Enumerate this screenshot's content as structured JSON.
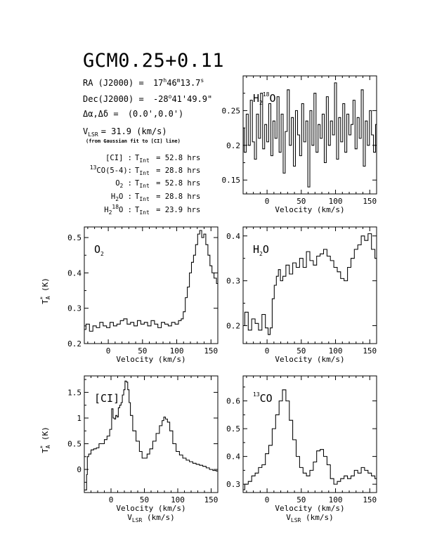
{
  "source": {
    "name": "GCM0.25+0.11",
    "ra_label": "RA (J2000) =",
    "ra_h": "17",
    "ra_m": "46",
    "ra_s": "13.7",
    "dec_label": "Dec(J2000) =",
    "dec_deg": "-28",
    "dec_min": "41'49.9\"",
    "offset_label": "Δα,Δδ =",
    "offset_value": "(0.0',0.0')",
    "vlsr_label": "V",
    "vlsr_sub": "LSR",
    "vlsr_value": "= 31.9 (km/s)",
    "vlsr_note": "(from Gaussian fit to [CI] line)"
  },
  "integration_times": [
    {
      "sup": "",
      "line": "[CI] :",
      "tint": "T",
      "tint_sub": "Int",
      "value": "= 52.8 hrs"
    },
    {
      "sup": "13",
      "line": "CO(5-4):",
      "tint": "T",
      "tint_sub": "Int",
      "value": "= 28.8 hrs"
    },
    {
      "sup": "",
      "line": "O",
      "line_sub": "2",
      "line_tail": " :",
      "tint": "T",
      "tint_sub": "Int",
      "value": "= 52.8 hrs"
    },
    {
      "sup": "",
      "line": "H",
      "line_sub": "2",
      "line_tail": "O :",
      "tint": "T",
      "tint_sub": "Int",
      "value": "= 28.8 hrs"
    },
    {
      "sup": "",
      "line": "H",
      "line_sub": "2",
      "line_sup2": "18",
      "line_tail": "O :",
      "tint": "T",
      "tint_sub": "Int",
      "value": "= 23.9 hrs"
    }
  ],
  "chart_data": [
    {
      "id": "h2-18o",
      "type": "line",
      "label": {
        "main": "H",
        "sub": "2",
        "sup": "18",
        "tail": "O"
      },
      "xlabel": "Velocity (km/s)",
      "ylabel": "",
      "xlim": [
        -35,
        160
      ],
      "ylim": [
        0.13,
        0.3
      ],
      "xticks": [
        0,
        50,
        100,
        150
      ],
      "yticks": [
        0.15,
        0.2,
        0.25
      ],
      "ytick_labels": [
        "0.15",
        "0.2",
        "0.25"
      ],
      "x": [
        -35,
        -32,
        -29,
        -26,
        -23,
        -20,
        -17,
        -14,
        -11,
        -8,
        -5,
        -2,
        1,
        4,
        7,
        10,
        13,
        16,
        19,
        22,
        25,
        28,
        31,
        34,
        37,
        40,
        43,
        46,
        49,
        52,
        55,
        58,
        61,
        64,
        67,
        70,
        73,
        76,
        79,
        82,
        85,
        88,
        91,
        94,
        97,
        100,
        103,
        106,
        109,
        112,
        115,
        118,
        121,
        124,
        127,
        130,
        133,
        136,
        139,
        142,
        145,
        148,
        151,
        154,
        157,
        160
      ],
      "values": [
        0.225,
        0.19,
        0.245,
        0.2,
        0.265,
        0.205,
        0.18,
        0.245,
        0.21,
        0.275,
        0.195,
        0.23,
        0.205,
        0.26,
        0.185,
        0.235,
        0.21,
        0.27,
        0.19,
        0.245,
        0.16,
        0.22,
        0.28,
        0.2,
        0.24,
        0.17,
        0.25,
        0.215,
        0.185,
        0.26,
        0.205,
        0.235,
        0.14,
        0.25,
        0.2,
        0.275,
        0.19,
        0.23,
        0.21,
        0.245,
        0.175,
        0.27,
        0.2,
        0.235,
        0.215,
        0.29,
        0.18,
        0.24,
        0.205,
        0.26,
        0.19,
        0.245,
        0.215,
        0.23,
        0.265,
        0.195,
        0.24,
        0.21,
        0.28,
        0.17,
        0.235,
        0.2,
        0.25,
        0.215,
        0.19,
        0.23
      ]
    },
    {
      "id": "o2",
      "type": "line",
      "label": {
        "main": "O",
        "sub": "2",
        "sup": "",
        "tail": ""
      },
      "xlabel": "Velocity (km/s)",
      "ylabel": "T*A (K)",
      "xlim": [
        -35,
        160
      ],
      "ylim": [
        0.2,
        0.53
      ],
      "xticks": [
        0,
        50,
        100,
        150
      ],
      "yticks": [
        0.2,
        0.3,
        0.4,
        0.5
      ],
      "ytick_labels": [
        "0.2",
        "0.3",
        "0.4",
        "0.5"
      ],
      "x": [
        -35,
        -30,
        -25,
        -20,
        -15,
        -10,
        -5,
        0,
        5,
        10,
        15,
        20,
        25,
        30,
        35,
        40,
        45,
        50,
        55,
        60,
        65,
        70,
        75,
        80,
        85,
        90,
        95,
        100,
        105,
        108,
        111,
        114,
        117,
        120,
        123,
        126,
        129,
        132,
        135,
        138,
        141,
        144,
        147,
        150,
        153,
        156,
        160
      ],
      "values": [
        0.24,
        0.255,
        0.235,
        0.25,
        0.245,
        0.26,
        0.25,
        0.245,
        0.26,
        0.25,
        0.255,
        0.265,
        0.27,
        0.255,
        0.26,
        0.25,
        0.265,
        0.255,
        0.26,
        0.25,
        0.265,
        0.255,
        0.245,
        0.26,
        0.255,
        0.25,
        0.26,
        0.255,
        0.265,
        0.27,
        0.29,
        0.33,
        0.36,
        0.4,
        0.43,
        0.45,
        0.48,
        0.51,
        0.52,
        0.5,
        0.51,
        0.48,
        0.45,
        0.42,
        0.4,
        0.385,
        0.37
      ]
    },
    {
      "id": "h2o",
      "type": "line",
      "label": {
        "main": "H",
        "sub": "2",
        "sup": "",
        "tail": "O"
      },
      "xlabel": "Velocity (km/s)",
      "ylabel": "",
      "xlim": [
        -35,
        160
      ],
      "ylim": [
        0.16,
        0.42
      ],
      "xticks": [
        0,
        50,
        100,
        150
      ],
      "yticks": [
        0.2,
        0.3,
        0.4
      ],
      "ytick_labels": [
        "0.2",
        "0.3",
        "0.4"
      ],
      "x": [
        -35,
        -30,
        -25,
        -20,
        -15,
        -10,
        -5,
        0,
        3,
        6,
        9,
        12,
        15,
        18,
        21,
        25,
        30,
        35,
        40,
        45,
        50,
        55,
        60,
        65,
        70,
        75,
        80,
        85,
        90,
        95,
        100,
        105,
        110,
        115,
        120,
        125,
        130,
        135,
        140,
        145,
        150,
        155,
        160
      ],
      "values": [
        0.2,
        0.23,
        0.19,
        0.215,
        0.205,
        0.19,
        0.225,
        0.195,
        0.18,
        0.195,
        0.26,
        0.29,
        0.31,
        0.325,
        0.3,
        0.31,
        0.335,
        0.315,
        0.34,
        0.33,
        0.35,
        0.33,
        0.365,
        0.345,
        0.335,
        0.355,
        0.36,
        0.37,
        0.355,
        0.345,
        0.33,
        0.32,
        0.305,
        0.3,
        0.33,
        0.35,
        0.37,
        0.38,
        0.4,
        0.39,
        0.405,
        0.37,
        0.35
      ]
    },
    {
      "id": "ci",
      "type": "line",
      "label": {
        "main": "[CI]",
        "sub": "",
        "sup": "",
        "tail": ""
      },
      "xlabel": "Velocity (km/s)",
      "xlabel2": "VLSR (km/s)",
      "ylabel": "T*A (K)",
      "xlim": [
        -40,
        160
      ],
      "ylim": [
        -0.45,
        1.82
      ],
      "xticks": [
        0,
        50,
        100,
        150
      ],
      "yticks": [
        0,
        0.5,
        1,
        1.5
      ],
      "ytick_labels": [
        "0",
        "0.5",
        "1",
        "1.5"
      ],
      "x": [
        -40,
        -37,
        -36,
        -35,
        -32,
        -28,
        -24,
        -20,
        -16,
        -12,
        -8,
        -4,
        0,
        2,
        4,
        6,
        8,
        10,
        12,
        14,
        16,
        18,
        20,
        22,
        24,
        26,
        28,
        30,
        35,
        40,
        45,
        48,
        52,
        56,
        60,
        65,
        70,
        75,
        78,
        80,
        83,
        86,
        90,
        95,
        100,
        105,
        110,
        115,
        120,
        125,
        130,
        135,
        140,
        145,
        150,
        155,
        160
      ],
      "values": [
        -0.4,
        -0.4,
        -0.1,
        0.25,
        0.3,
        0.38,
        0.4,
        0.42,
        0.5,
        0.5,
        0.58,
        0.65,
        0.78,
        1.18,
        1.0,
        0.98,
        1.05,
        1.02,
        1.2,
        1.25,
        1.3,
        1.45,
        1.55,
        1.72,
        1.7,
        1.55,
        1.3,
        1.05,
        0.75,
        0.55,
        0.35,
        0.22,
        0.22,
        0.3,
        0.4,
        0.55,
        0.7,
        0.85,
        0.95,
        1.02,
        0.98,
        0.92,
        0.75,
        0.5,
        0.35,
        0.28,
        0.22,
        0.18,
        0.15,
        0.12,
        0.1,
        0.08,
        0.06,
        0.03,
        0.0,
        -0.02,
        -0.03
      ]
    },
    {
      "id": "13co",
      "type": "line",
      "label": {
        "main": "CO",
        "sub": "",
        "sup": "13",
        "tail": ""
      },
      "xlabel": "Velocity (km/s)",
      "xlabel2": "VLSR (km/s)",
      "ylabel": "",
      "xlim": [
        -35,
        160
      ],
      "ylim": [
        0.27,
        0.69
      ],
      "xticks": [
        0,
        50,
        100,
        150
      ],
      "yticks": [
        0.3,
        0.4,
        0.5,
        0.6
      ],
      "ytick_labels": [
        "0.3",
        "0.4",
        "0.5",
        "0.6"
      ],
      "x": [
        -35,
        -30,
        -25,
        -20,
        -15,
        -10,
        -5,
        0,
        5,
        10,
        15,
        20,
        25,
        30,
        35,
        40,
        45,
        50,
        55,
        60,
        65,
        70,
        75,
        80,
        85,
        90,
        95,
        100,
        105,
        110,
        115,
        120,
        125,
        130,
        135,
        140,
        145,
        150,
        155,
        160
      ],
      "values": [
        0.28,
        0.3,
        0.31,
        0.33,
        0.34,
        0.36,
        0.37,
        0.41,
        0.44,
        0.5,
        0.55,
        0.6,
        0.64,
        0.6,
        0.53,
        0.46,
        0.4,
        0.36,
        0.34,
        0.33,
        0.35,
        0.38,
        0.42,
        0.425,
        0.4,
        0.37,
        0.32,
        0.3,
        0.31,
        0.32,
        0.33,
        0.32,
        0.33,
        0.35,
        0.34,
        0.36,
        0.35,
        0.34,
        0.33,
        0.32
      ]
    }
  ]
}
